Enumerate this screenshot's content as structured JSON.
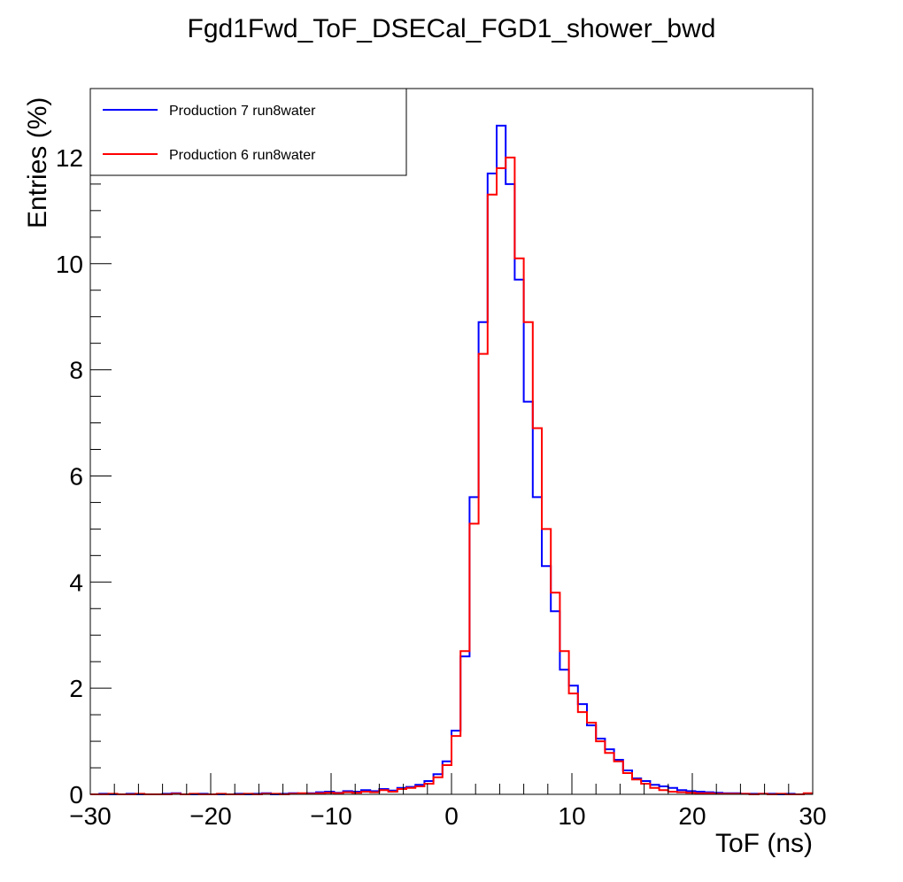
{
  "chart_data": {
    "type": "line",
    "title": "Fgd1Fwd_ToF_DSECal_FGD1_shower_bwd",
    "xlabel": "ToF (ns)",
    "ylabel": "Entries (%)",
    "xlim": [
      -30,
      30
    ],
    "ylim": [
      0,
      13.3
    ],
    "xticks": [
      -30,
      -20,
      -10,
      0,
      10,
      20,
      30
    ],
    "yticks": [
      0,
      2,
      4,
      6,
      8,
      10,
      12
    ],
    "bin_width": 1,
    "bin_edges_start": -30,
    "legend_position": "top-left",
    "grid": false,
    "series": [
      {
        "name": "Production 7 run8water",
        "color": "#0000ff",
        "values": [
          0,
          0.01,
          0,
          0,
          0.01,
          0,
          0,
          0,
          0.01,
          0.02,
          0,
          0,
          0.01,
          0,
          0,
          0,
          0.01,
          0,
          0.01,
          0.02,
          0,
          0.01,
          0.02,
          0.01,
          0.02,
          0.04,
          0.05,
          0.03,
          0.06,
          0.05,
          0.08,
          0.06,
          0.1,
          0.07,
          0.12,
          0.14,
          0.18,
          0.25,
          0.38,
          0.62,
          1.2,
          2.6,
          5.6,
          8.9,
          11.7,
          12.6,
          11.5,
          9.7,
          7.4,
          5.6,
          4.3,
          3.45,
          2.35,
          2.05,
          1.7,
          1.3,
          1.05,
          0.85,
          0.65,
          0.45,
          0.3,
          0.25,
          0.18,
          0.15,
          0.12,
          0.08,
          0.06,
          0.05,
          0.04,
          0.03,
          0.02,
          0.02,
          0.01,
          0.01,
          0.01,
          0.01,
          0,
          0.01,
          0,
          0.01
        ],
        "x_start": -30,
        "note_bins": "half-ns bins"
      },
      {
        "name": "Production 6 run8water",
        "color": "#ff0000",
        "values": [
          0,
          0,
          0.01,
          0,
          0,
          0.01,
          0,
          0,
          0,
          0.01,
          0,
          0.01,
          0,
          0,
          0.01,
          0,
          0,
          0.01,
          0,
          0.01,
          0.01,
          0,
          0.01,
          0.02,
          0.01,
          0.02,
          0.03,
          0.02,
          0.04,
          0.03,
          0.05,
          0.04,
          0.08,
          0.05,
          0.1,
          0.12,
          0.15,
          0.2,
          0.32,
          0.55,
          1.1,
          2.7,
          5.1,
          8.3,
          11.3,
          11.8,
          12.0,
          10.1,
          8.9,
          6.9,
          5.0,
          3.8,
          2.7,
          1.9,
          1.55,
          1.35,
          1.0,
          0.78,
          0.62,
          0.4,
          0.28,
          0.2,
          0.12,
          0.08,
          0.05,
          0.04,
          0.03,
          0.02,
          0.02,
          0.01,
          0.01,
          0.01,
          0.01,
          0,
          0.01,
          0,
          0.01,
          0,
          0,
          0.02
        ],
        "x_start": -30
      }
    ]
  }
}
